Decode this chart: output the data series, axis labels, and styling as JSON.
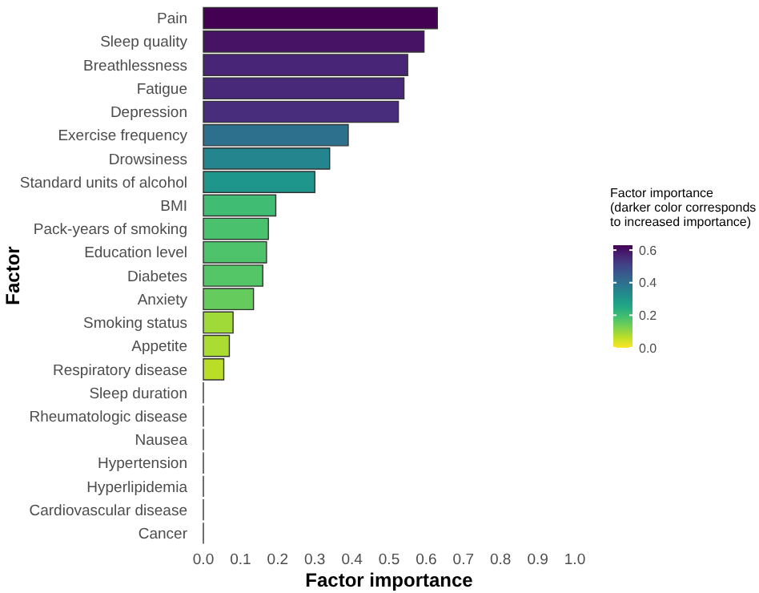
{
  "chart_data": {
    "type": "bar",
    "orientation": "horizontal",
    "xlabel": "Factor importance",
    "ylabel": "Factor",
    "clabel": "Factor importance\n(darker color corresponds\nto increased importance)",
    "categories": [
      "Pain",
      "Sleep quality",
      "Breathlessness",
      "Fatigue",
      "Depression",
      "Exercise frequency",
      "Drowsiness",
      "Standard units of alcohol",
      "BMI",
      "Pack-years of smoking",
      "Education level",
      "Diabetes",
      "Anxiety",
      "Smoking status",
      "Appetite",
      "Respiratory disease",
      "Sleep duration",
      "Rheumatologic disease",
      "Nausea",
      "Hypertension",
      "Hyperlipidemia",
      "Cardiovascular disease",
      "Cancer"
    ],
    "values": [
      0.63,
      0.594,
      0.55,
      0.54,
      0.525,
      0.39,
      0.34,
      0.3,
      0.195,
      0.175,
      0.17,
      0.16,
      0.135,
      0.08,
      0.07,
      0.055,
      0,
      0,
      0,
      0,
      0,
      0,
      0
    ],
    "colors": [
      "#440154",
      "#471365",
      "#482576",
      "#482878",
      "#472d7b",
      "#2d708e",
      "#25858e",
      "#1f968b",
      "#40bd72",
      "#4ac16d",
      "#4ec36b",
      "#55c667",
      "#66cb5d",
      "#a0da39",
      "#aadc32",
      "#bade28",
      "#333333",
      "#333333",
      "#333333",
      "#333333",
      "#333333",
      "#333333",
      "#333333"
    ],
    "xlim": [
      0,
      1
    ],
    "xticks": [
      {
        "value": 0,
        "label": "0.0"
      },
      0.1,
      0.2,
      0.3,
      0.4,
      0.5,
      0.6,
      0.7,
      0.8,
      0.9,
      {
        "value": 1,
        "label": "1.0"
      }
    ],
    "clim": [
      0,
      0.63
    ],
    "cticks": [
      {
        "value": 0,
        "label": "0.0"
      },
      0.2,
      0.4,
      0.6
    ],
    "grid": false
  }
}
